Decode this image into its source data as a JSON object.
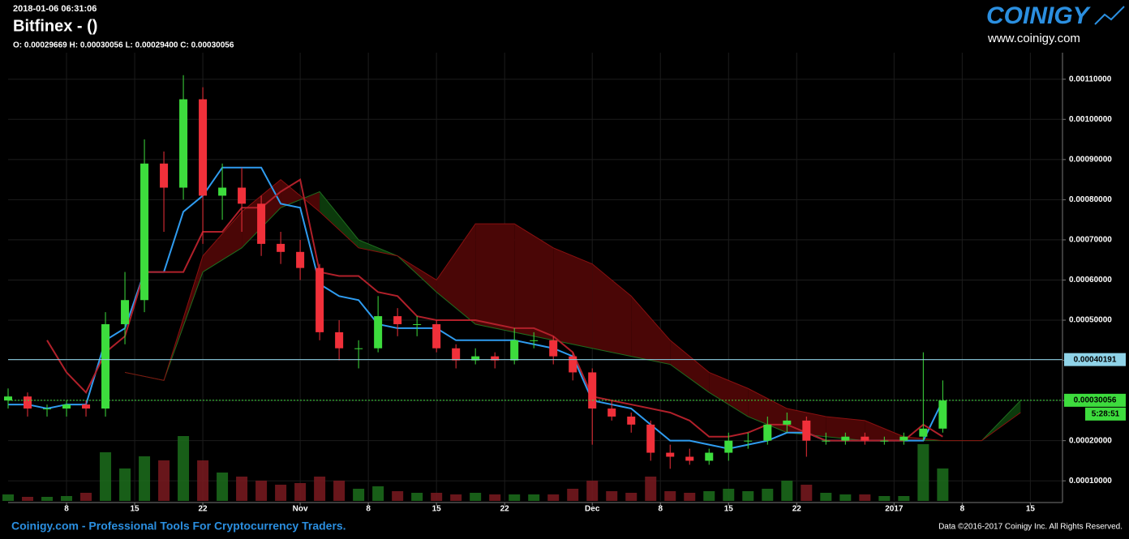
{
  "header": {
    "timestamp": "2018-01-06 06:31:06",
    "title": "Bitfinex -  ()",
    "ohlc": "O: 0.00029669 H: 0.00030056 L: 0.00029400 C: 0.00030056"
  },
  "logo": {
    "name": "COINIGY",
    "url": "www.coinigy.com"
  },
  "footer": {
    "left": "Coinigy.com - Professional Tools For Cryptocurrency Traders.",
    "right": "Data ©2016-2017 Coinigy Inc. All Rights Reserved."
  },
  "chart_data": {
    "type": "candlestick",
    "x": [
      0,
      2,
      4,
      6,
      8,
      10,
      12,
      14,
      16,
      18,
      20,
      22,
      24,
      26,
      28,
      30,
      32,
      34,
      36,
      38,
      40,
      42,
      44,
      46,
      48,
      50,
      52,
      54,
      56,
      58,
      60,
      62,
      64,
      66,
      68,
      70,
      72,
      74,
      76,
      78,
      80,
      82,
      84,
      86,
      88,
      90,
      92,
      94,
      96
    ],
    "open": [
      0.0003,
      0.00031,
      0.00028,
      0.00028,
      0.00029,
      0.00028,
      0.00049,
      0.00055,
      0.00089,
      0.00083,
      0.00105,
      0.00081,
      0.00083,
      0.00079,
      0.00069,
      0.00067,
      0.00063,
      0.00047,
      0.00043,
      0.00043,
      0.00051,
      0.00049,
      0.00049,
      0.00043,
      0.0004,
      0.00041,
      0.0004,
      0.00045,
      0.00045,
      0.00041,
      0.00037,
      0.00028,
      0.00026,
      0.00024,
      0.00017,
      0.00016,
      0.00015,
      0.00017,
      0.0002,
      0.0002,
      0.00024,
      0.00025,
      0.0002,
      0.0002,
      0.00021,
      0.0002,
      0.0002,
      0.00021,
      0.00023
    ],
    "high": [
      0.00033,
      0.00032,
      0.00029,
      0.0003,
      0.0003,
      0.00052,
      0.00062,
      0.00095,
      0.00092,
      0.00111,
      0.00108,
      0.00089,
      0.00088,
      0.00081,
      0.00072,
      0.0007,
      0.00064,
      0.0005,
      0.00045,
      0.00056,
      0.00053,
      0.00051,
      0.0005,
      0.00044,
      0.00043,
      0.00042,
      0.00048,
      0.00047,
      0.00046,
      0.00042,
      0.00038,
      0.0003,
      0.00027,
      0.00025,
      0.00019,
      0.00018,
      0.00018,
      0.00022,
      0.00022,
      0.00026,
      0.00027,
      0.00026,
      0.00022,
      0.00022,
      0.00022,
      0.00021,
      0.00022,
      0.00042,
      0.00035
    ],
    "low": [
      0.00028,
      0.00026,
      0.00026,
      0.00026,
      0.00026,
      0.00026,
      0.00044,
      0.00052,
      0.00072,
      0.0008,
      0.00069,
      0.00075,
      0.00072,
      0.00066,
      0.00064,
      0.0006,
      0.00045,
      0.0004,
      0.00038,
      0.00042,
      0.00046,
      0.00046,
      0.00042,
      0.00038,
      0.00039,
      0.00038,
      0.00039,
      0.00043,
      0.00039,
      0.00035,
      0.00019,
      0.00025,
      0.00022,
      0.00015,
      0.00013,
      0.00014,
      0.00014,
      0.00015,
      0.00018,
      0.00019,
      0.00022,
      0.00016,
      0.00019,
      0.00019,
      0.00019,
      0.00019,
      0.00019,
      0.0002,
      0.00022
    ],
    "close": [
      0.00031,
      0.00028,
      0.00028,
      0.00029,
      0.00028,
      0.00049,
      0.00055,
      0.00089,
      0.00083,
      0.00105,
      0.00081,
      0.00083,
      0.00079,
      0.00069,
      0.00067,
      0.00063,
      0.00047,
      0.00043,
      0.00043,
      0.00051,
      0.00049,
      0.00049,
      0.00043,
      0.0004,
      0.00041,
      0.0004,
      0.00045,
      0.00045,
      0.00041,
      0.00037,
      0.00028,
      0.00026,
      0.00024,
      0.00017,
      0.00016,
      0.00015,
      0.00017,
      0.0002,
      0.0002,
      0.00024,
      0.00025,
      0.0002,
      0.0002,
      0.00021,
      0.0002,
      0.0002,
      0.00021,
      0.00023,
      0.0003
    ],
    "up_color": "#3ddc3d",
    "down_color": "#f0303a",
    "lines": [
      {
        "color": "#2f9cf0",
        "values": [
          0.00029,
          0.00029,
          0.00028,
          0.00029,
          0.00029,
          0.00045,
          0.00048,
          0.00062,
          0.00062,
          0.00077,
          0.00081,
          0.00088,
          0.00088,
          0.00088,
          0.00079,
          0.00078,
          0.00059,
          0.00056,
          0.00055,
          0.00049,
          0.00048,
          0.00048,
          0.00048,
          0.00045,
          0.00045,
          0.00045,
          0.00045,
          0.00044,
          0.00043,
          0.00041,
          0.0003,
          0.00029,
          0.00028,
          0.00024,
          0.0002,
          0.0002,
          0.00019,
          0.00018,
          0.00019,
          0.0002,
          0.00022,
          0.00022,
          0.0002,
          0.0002,
          0.0002,
          0.0002,
          0.0002,
          0.0002,
          0.0003
        ]
      },
      {
        "color": "#b0202a",
        "values": [
          null,
          null,
          0.00045,
          0.00037,
          0.00032,
          0.00042,
          0.00046,
          0.00062,
          0.00062,
          0.00062,
          0.00072,
          0.00072,
          0.00078,
          0.00078,
          0.00082,
          0.00085,
          0.00062,
          0.00061,
          0.00061,
          0.00057,
          0.00056,
          0.00051,
          0.0005,
          0.0005,
          0.0005,
          0.00049,
          0.00048,
          0.00048,
          0.00046,
          0.00042,
          0.00031,
          0.0003,
          0.00029,
          0.00028,
          0.00027,
          0.00025,
          0.00021,
          0.00021,
          0.00022,
          0.00024,
          0.00024,
          0.00022,
          0.0002,
          0.0002,
          0.0002,
          0.0002,
          0.0002,
          0.00024,
          0.00021
        ]
      }
    ],
    "cloud": {
      "x": [
        12,
        16,
        20,
        24,
        28,
        32,
        36,
        40,
        44,
        48,
        52,
        56,
        60,
        64,
        68,
        72,
        76,
        80,
        84,
        88,
        92,
        96,
        100,
        104
      ],
      "span_a": [
        0.00037,
        0.00035,
        0.00062,
        0.00068,
        0.00078,
        0.00082,
        0.0007,
        0.00066,
        0.00057,
        0.00049,
        0.00047,
        0.00045,
        0.00043,
        0.00041,
        0.00039,
        0.00032,
        0.00026,
        0.00022,
        0.00021,
        0.0002,
        0.0002,
        0.0002,
        0.0002,
        0.0003
      ],
      "span_b": [
        0.00037,
        0.00035,
        0.00066,
        0.00077,
        0.00085,
        0.00077,
        0.00068,
        0.00066,
        0.0006,
        0.00074,
        0.00074,
        0.00068,
        0.00064,
        0.00056,
        0.00045,
        0.00037,
        0.00033,
        0.00028,
        0.00026,
        0.00025,
        0.00021,
        0.0002,
        0.0002,
        0.00027
      ],
      "a_color": "#1f6e1f",
      "b_color": "#8a1010",
      "up_fill": "#0c3a0c",
      "down_fill": "#4a0606"
    },
    "volume": {
      "values": [
        8,
        5,
        5,
        6,
        10,
        60,
        40,
        55,
        50,
        80,
        50,
        35,
        30,
        25,
        20,
        22,
        30,
        25,
        15,
        18,
        12,
        10,
        10,
        8,
        10,
        8,
        8,
        8,
        8,
        15,
        25,
        12,
        10,
        30,
        12,
        10,
        12,
        15,
        12,
        15,
        25,
        20,
        10,
        8,
        8,
        6,
        6,
        70,
        40
      ],
      "vlim": [
        0,
        100
      ]
    },
    "ref_lines": [
      {
        "value": 0.00040191,
        "color": "#8fd3e8"
      },
      {
        "value": 0.00030056,
        "color": "#3ddc3d"
      }
    ],
    "countdown": "5:28:51",
    "xlim": [
      0,
      108.3
    ],
    "ylim": [
      5e-05,
      0.00116
    ],
    "xticks": [
      {
        "value": 6,
        "label": "8"
      },
      {
        "value": 13,
        "label": "15"
      },
      {
        "value": 20,
        "label": "22"
      },
      {
        "value": 30,
        "label": "Nov"
      },
      {
        "value": 37,
        "label": "8"
      },
      {
        "value": 44,
        "label": "15"
      },
      {
        "value": 51,
        "label": "22"
      },
      {
        "value": 60,
        "label": "Dec"
      },
      {
        "value": 67,
        "label": "8"
      },
      {
        "value": 74,
        "label": "15"
      },
      {
        "value": 81,
        "label": "22"
      },
      {
        "value": 91,
        "label": "2017"
      },
      {
        "value": 98,
        "label": "8"
      },
      {
        "value": 105,
        "label": "15"
      }
    ],
    "yticks": [
      {
        "value": 0.0001,
        "label": "0.00010000"
      },
      {
        "value": 0.0002,
        "label": "0.00020000"
      },
      {
        "value": 0.0003,
        "label": "0.00030000"
      },
      {
        "value": 0.0004,
        "label": "0.00040000"
      },
      {
        "value": 0.0005,
        "label": "0.00050000"
      },
      {
        "value": 0.0006,
        "label": "0.00060000"
      },
      {
        "value": 0.0007,
        "label": "0.00070000"
      },
      {
        "value": 0.0008,
        "label": "0.00080000"
      },
      {
        "value": 0.0009,
        "label": "0.00090000"
      },
      {
        "value": 0.001,
        "label": "0.00100000"
      },
      {
        "value": 0.0011,
        "label": "0.00110000"
      }
    ],
    "grid": true
  }
}
